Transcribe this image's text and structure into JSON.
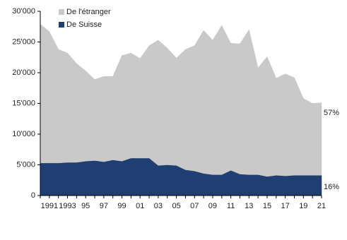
{
  "chart_data": {
    "type": "stacked-area",
    "categories": [
      null,
      "1991",
      null,
      "1993",
      null,
      "95",
      null,
      "97",
      null,
      "99",
      null,
      "01",
      null,
      "03",
      null,
      "05",
      null,
      "07",
      null,
      "09",
      null,
      "11",
      null,
      "13",
      null,
      "15",
      null,
      "17",
      null,
      "19",
      null,
      "21"
    ],
    "series": [
      {
        "name": "De Suisse",
        "color": "#1f3f73",
        "values": [
          5300,
          5300,
          5300,
          5400,
          5400,
          5600,
          5700,
          5500,
          5800,
          5600,
          6100,
          6100,
          6100,
          4900,
          5000,
          4900,
          4200,
          4000,
          3600,
          3400,
          3400,
          4100,
          3500,
          3400,
          3400,
          3100,
          3300,
          3200,
          3300,
          3300,
          3300,
          3300
        ]
      },
      {
        "name": "De l'étranger",
        "color": "#c9c9c9",
        "values": [
          22600,
          21400,
          18500,
          17800,
          16100,
          14700,
          13200,
          13900,
          13600,
          17200,
          17100,
          16200,
          18300,
          20400,
          19000,
          17500,
          19600,
          20400,
          23300,
          21900,
          24300,
          20700,
          21200,
          23600,
          17400,
          19500,
          15800,
          16600,
          15900,
          12500,
          11700,
          11800
        ]
      }
    ],
    "ylim": [
      0,
      30000
    ],
    "yticks": [
      {
        "value": 0,
        "label": "0"
      },
      {
        "value": 5000,
        "label": "5'000"
      },
      {
        "value": 10000,
        "label": "10'000"
      },
      {
        "value": 15000,
        "label": "15'000"
      },
      {
        "value": 20000,
        "label": "20'000"
      },
      {
        "value": 25000,
        "label": "25'000"
      },
      {
        "value": 30000,
        "label": "30'000"
      }
    ],
    "annotations": [
      "57%",
      "16%"
    ],
    "legend": "upper-left"
  }
}
